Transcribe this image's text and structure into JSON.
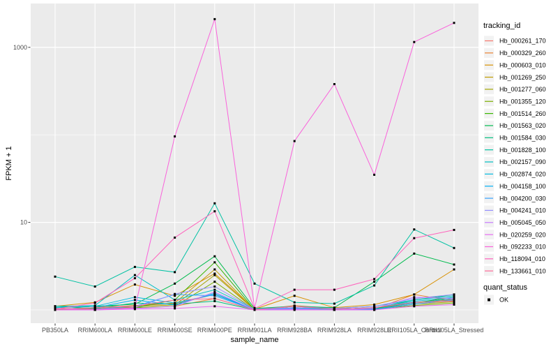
{
  "figure": {
    "panel_bg": "#EBEBEB",
    "grid_color": "#FFFFFF",
    "tick_label_color": "#4D4D4D",
    "tick_mark_color": "#333333",
    "point_color": "#000000",
    "legend_key_bg": "#F2F2F2"
  },
  "chart_data": {
    "type": "line",
    "title": "",
    "xlabel": "sample_name",
    "ylabel": "FPKM + 1",
    "y_scale": "log10",
    "grid": true,
    "legend_position": "right",
    "y_ticks": [
      {
        "value": 10,
        "label": "10"
      },
      {
        "value": 1000,
        "label": "1000"
      }
    ],
    "y_minor_gridlines": [
      1,
      100
    ],
    "ylim": [
      0.7,
      3170
    ],
    "point_shape": "square",
    "categories": [
      "PB350LA",
      "RRIM600LA",
      "RRIM600LE",
      "RRIM600SE",
      "RRIM600PE",
      "RRIM901LA",
      "RRIM928BA",
      "RRIM928LA",
      "RRIM928LE",
      "RRII105LA_Control",
      "RRII105LA_Stressed"
    ],
    "legend_title": "tracking_id",
    "legend2_title": "quant_status",
    "legend2_items": [
      "OK"
    ],
    "series": [
      {
        "name": "Hb_000261_170",
        "color": "#F8766D",
        "values": [
          1.02,
          1.06,
          1.12,
          1.18,
          1.5,
          1.02,
          1.06,
          1.02,
          1.06,
          1.22,
          1.32
        ]
      },
      {
        "name": "Hb_000329_260",
        "color": "#EA8331",
        "values": [
          1.06,
          1.1,
          1.06,
          1.1,
          1.35,
          1.0,
          1.12,
          1.04,
          1.02,
          1.5,
          1.26
        ]
      },
      {
        "name": "Hb_000603_010",
        "color": "#D89000",
        "values": [
          1.1,
          1.22,
          1.95,
          1.45,
          2.6,
          1.02,
          1.45,
          1.06,
          1.15,
          1.5,
          2.9
        ]
      },
      {
        "name": "Hb_001269_250",
        "color": "#C09B00",
        "values": [
          1.04,
          1.02,
          1.12,
          1.2,
          2.9,
          1.0,
          1.1,
          1.02,
          1.06,
          1.2,
          1.3
        ]
      },
      {
        "name": "Hb_001277_060",
        "color": "#A3A500",
        "values": [
          1.02,
          1.06,
          1.1,
          1.14,
          2.5,
          1.0,
          1.06,
          1.0,
          1.02,
          1.16,
          1.24
        ]
      },
      {
        "name": "Hb_001355_120",
        "color": "#7CAE00",
        "values": [
          1.0,
          1.04,
          1.06,
          1.1,
          2.1,
          1.0,
          1.04,
          1.0,
          1.02,
          1.12,
          1.2
        ]
      },
      {
        "name": "Hb_001514_260",
        "color": "#39B600",
        "values": [
          1.02,
          1.0,
          1.06,
          1.3,
          3.5,
          1.0,
          1.06,
          1.0,
          1.04,
          1.2,
          1.4
        ]
      },
      {
        "name": "Hb_001563_020",
        "color": "#00BB4E",
        "values": [
          1.06,
          1.1,
          1.16,
          2.0,
          4.1,
          1.04,
          1.1,
          1.06,
          2.1,
          4.4,
          3.3
        ]
      },
      {
        "name": "Hb_001584_030",
        "color": "#00BF7D",
        "values": [
          1.1,
          1.04,
          1.2,
          1.16,
          1.26,
          1.0,
          1.06,
          1.02,
          1.04,
          1.3,
          1.5
        ]
      },
      {
        "name": "Hb_001828_100",
        "color": "#00C1A3",
        "values": [
          2.4,
          1.85,
          3.1,
          2.7,
          16.5,
          2.0,
          1.22,
          1.18,
          1.9,
          8.3,
          5.1
        ]
      },
      {
        "name": "Hb_002157_090",
        "color": "#00BFC4",
        "values": [
          1.1,
          1.12,
          2.5,
          1.3,
          1.7,
          1.02,
          1.1,
          1.04,
          1.1,
          1.3,
          1.45
        ]
      },
      {
        "name": "Hb_002874_020",
        "color": "#00BAE0",
        "values": [
          1.06,
          1.1,
          1.4,
          1.2,
          1.5,
          1.0,
          1.06,
          1.02,
          1.06,
          1.25,
          1.4
        ]
      },
      {
        "name": "Hb_004158_100",
        "color": "#00B0F6",
        "values": [
          1.02,
          1.06,
          1.3,
          1.14,
          1.55,
          1.0,
          1.02,
          1.0,
          1.02,
          1.2,
          1.35
        ]
      },
      {
        "name": "Hb_004200_030",
        "color": "#35A2FF",
        "values": [
          1.0,
          1.02,
          1.1,
          1.5,
          1.45,
          1.0,
          1.04,
          1.0,
          1.0,
          1.16,
          1.3
        ]
      },
      {
        "name": "Hb_004241_010",
        "color": "#9590FF",
        "values": [
          1.04,
          1.0,
          1.06,
          1.52,
          1.85,
          1.02,
          1.06,
          1.04,
          1.1,
          1.35,
          1.5
        ]
      },
      {
        "name": "Hb_005045_050",
        "color": "#C77CFF",
        "values": [
          1.0,
          1.0,
          1.04,
          1.1,
          1.6,
          1.0,
          1.02,
          1.0,
          1.04,
          1.4,
          1.35
        ]
      },
      {
        "name": "Hb_020259_020",
        "color": "#E76BF3",
        "values": [
          1.0,
          1.0,
          1.02,
          1.04,
          1.1,
          1.0,
          1.0,
          1.0,
          1.0,
          1.1,
          1.15
        ]
      },
      {
        "name": "Hb_092233_010",
        "color": "#FA62DB",
        "values": [
          1.0,
          1.02,
          1.05,
          96,
          2100,
          1.05,
          85,
          380,
          35,
          1150,
          1900
        ]
      },
      {
        "name": "Hb_118094_010",
        "color": "#FF62BC",
        "values": [
          1.02,
          1.2,
          2.3,
          6.7,
          13.4,
          1.04,
          1.7,
          1.7,
          2.25,
          6.6,
          8.2
        ]
      },
      {
        "name": "Hb_133661_010",
        "color": "#FF6A98",
        "values": [
          1.02,
          1.06,
          1.1,
          1.3,
          1.35,
          1.0,
          1.1,
          1.02,
          1.06,
          1.22,
          1.26
        ]
      }
    ]
  }
}
